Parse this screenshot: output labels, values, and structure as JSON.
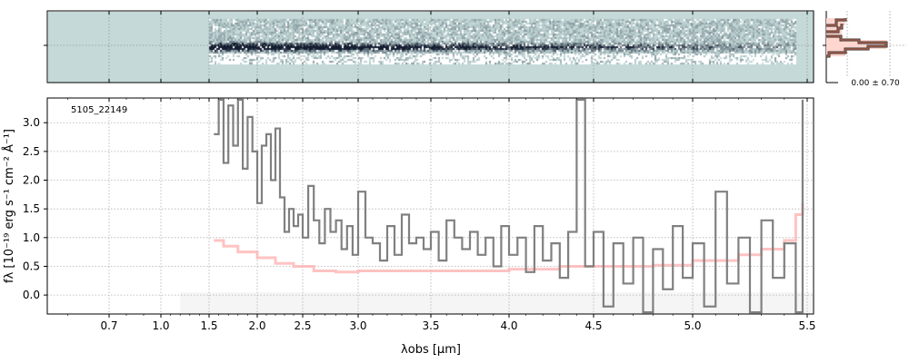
{
  "chart_data": [
    {
      "type": "heatmap",
      "name": "2D spectrum",
      "background_color": "#c4d9d8",
      "coverage_um": [
        1.5,
        5.45
      ],
      "ytick_labels": [
        ""
      ]
    },
    {
      "type": "line",
      "name": "1D spectrum",
      "object_label": "5105_22149",
      "xlabel": "λobs [µm]",
      "ylabel": "fλ [10⁻¹⁹ erg s⁻¹ cm⁻² Å⁻¹]",
      "xlim": [
        0.55,
        5.52
      ],
      "ylim": [
        -0.33,
        3.43
      ],
      "grid": true,
      "xticks": [
        0.7,
        1.0,
        1.5,
        2.0,
        2.5,
        3.0,
        3.5,
        4.0,
        4.5,
        5.0,
        5.5
      ],
      "xtick_labels": [
        "0.7",
        "1.0",
        "1.5",
        "2.0",
        "2.5",
        "3.0",
        "3.5",
        "4.0",
        "4.5",
        "5.0",
        "5.5"
      ],
      "yticks": [
        0.0,
        0.5,
        1.0,
        1.5,
        2.0,
        2.5,
        3.0
      ],
      "ytick_labels": [
        "0.0",
        "0.5",
        "1.0",
        "1.5",
        "2.0",
        "2.5",
        "3.0"
      ],
      "shaded_range_um": [
        1.2,
        5.52
      ],
      "series": [
        {
          "name": "flux",
          "color": "#808080",
          "x": [
            1.55,
            1.6,
            1.65,
            1.7,
            1.75,
            1.8,
            1.85,
            1.9,
            1.95,
            2.0,
            2.05,
            2.1,
            2.15,
            2.2,
            2.25,
            2.3,
            2.35,
            2.4,
            2.45,
            2.5,
            2.55,
            2.6,
            2.65,
            2.7,
            2.75,
            2.8,
            2.85,
            2.9,
            2.95,
            3.0,
            3.05,
            3.1,
            3.15,
            3.2,
            3.25,
            3.3,
            3.35,
            3.4,
            3.45,
            3.5,
            3.55,
            3.6,
            3.65,
            3.7,
            3.75,
            3.8,
            3.85,
            3.9,
            3.95,
            4.0,
            4.05,
            4.1,
            4.15,
            4.2,
            4.25,
            4.3,
            4.35,
            4.4,
            4.45,
            4.5,
            4.55,
            4.6,
            4.65,
            4.7,
            4.75,
            4.8,
            4.85,
            4.9,
            4.95,
            5.0,
            5.05,
            5.1,
            5.15,
            5.2,
            5.25,
            5.3,
            5.35,
            5.4,
            5.45,
            5.48
          ],
          "y": [
            2.8,
            3.4,
            2.3,
            3.3,
            2.6,
            3.4,
            2.2,
            3.1,
            2.5,
            1.6,
            2.6,
            2.8,
            2.0,
            2.9,
            1.7,
            1.1,
            1.5,
            1.2,
            1.4,
            1.0,
            1.9,
            1.3,
            0.9,
            1.5,
            1.1,
            1.3,
            0.8,
            1.2,
            0.7,
            1.8,
            1.0,
            0.9,
            0.6,
            1.2,
            0.7,
            1.4,
            0.9,
            1.0,
            0.8,
            1.1,
            0.6,
            1.3,
            1.0,
            0.8,
            1.1,
            0.7,
            1.0,
            0.5,
            1.2,
            0.7,
            1.0,
            0.4,
            1.2,
            0.6,
            0.9,
            0.3,
            1.1,
            3.4,
            0.5,
            1.1,
            -0.2,
            0.9,
            0.2,
            1.0,
            -0.3,
            0.8,
            0.1,
            1.2,
            0.3,
            0.9,
            -0.2,
            1.8,
            0.2,
            1.0,
            -0.3,
            1.3,
            0.3,
            0.9,
            -0.3,
            3.4
          ]
        },
        {
          "name": "error",
          "color": "#ffaaaa",
          "x": [
            1.55,
            1.65,
            1.8,
            2.0,
            2.2,
            2.4,
            2.6,
            2.8,
            3.0,
            3.5,
            4.0,
            4.3,
            4.5,
            4.8,
            5.0,
            5.2,
            5.3,
            5.4,
            5.45,
            5.48
          ],
          "y": [
            0.95,
            0.85,
            0.75,
            0.65,
            0.55,
            0.5,
            0.42,
            0.4,
            0.42,
            0.42,
            0.45,
            0.5,
            0.5,
            0.52,
            0.6,
            0.7,
            0.8,
            0.95,
            1.4,
            1.6
          ]
        }
      ]
    },
    {
      "type": "line",
      "name": "cross-dispersion profile",
      "xtick_labels": [
        "0.00 ± 0.70"
      ]
    }
  ]
}
